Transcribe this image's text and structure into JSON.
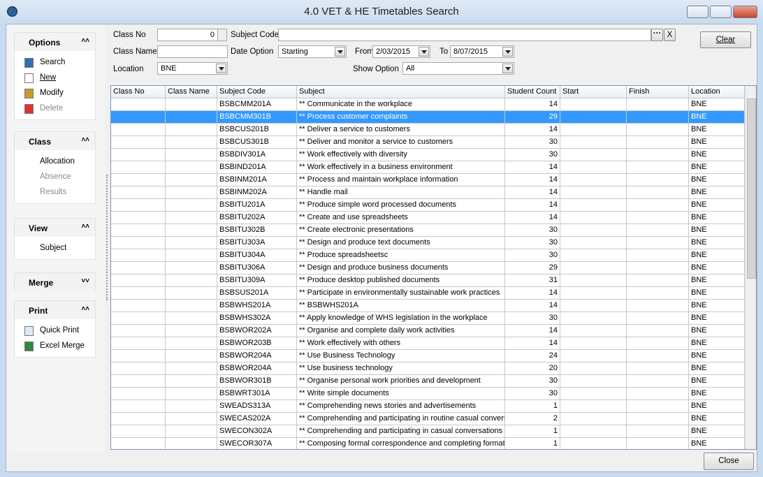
{
  "window": {
    "title": "4.0 VET & HE Timetables Search"
  },
  "sidebar": {
    "sections": [
      {
        "title": "Options",
        "items": [
          "Search",
          "New",
          "Modify",
          "Delete"
        ]
      },
      {
        "title": "Class",
        "items": [
          "Allocation",
          "Absence",
          "Results"
        ]
      },
      {
        "title": "View",
        "items": [
          "Subject"
        ]
      },
      {
        "title": "Merge",
        "items": []
      },
      {
        "title": "Print",
        "items": [
          "Quick Print",
          "Excel Merge"
        ]
      }
    ]
  },
  "filters": {
    "class_no_label": "Class No",
    "class_no": 0,
    "subject_code_label": "Subject Code",
    "subject_code_clear": "X",
    "class_name_label": "Class Name",
    "date_option_label": "Date Option",
    "date_option": "Starting",
    "from_label": "From",
    "from": "2/03/2015",
    "to_label": "To",
    "to": "8/07/2015",
    "location_label": "Location",
    "location": "BNE",
    "show_option_label": "Show Option",
    "show_option": "All"
  },
  "buttons": {
    "clear": "Clear",
    "close": "Close"
  },
  "table": {
    "columns": [
      "Class No",
      "Class Name",
      "Subject Code",
      "Subject",
      "Student Count",
      "Start",
      "Finish",
      "Location"
    ],
    "rows": [
      {
        "subject_code": "BSBCMM201A",
        "subject": "** Communicate in the workplace",
        "student_count": 14,
        "location": "BNE"
      },
      {
        "subject_code": "BSBCMM301B",
        "subject": "** Process customer complaints",
        "student_count": 29,
        "location": "BNE"
      },
      {
        "subject_code": "BSBCUS201B",
        "subject": "** Deliver a service to customers",
        "student_count": 14,
        "location": "BNE"
      },
      {
        "subject_code": "BSBCUS301B",
        "subject": "** Deliver and monitor a service to customers",
        "student_count": 30,
        "location": "BNE"
      },
      {
        "subject_code": "BSBDIV301A",
        "subject": "** Work effectively with diversity",
        "student_count": 30,
        "location": "BNE"
      },
      {
        "subject_code": "BSBIND201A",
        "subject": "** Work effectively in a business environment",
        "student_count": 14,
        "location": "BNE"
      },
      {
        "subject_code": "BSBINM201A",
        "subject": "** Process and maintain workplace information",
        "student_count": 14,
        "location": "BNE"
      },
      {
        "subject_code": "BSBINM202A",
        "subject": "** Handle mail",
        "student_count": 14,
        "location": "BNE"
      },
      {
        "subject_code": "BSBITU201A",
        "subject": "** Produce simple word processed documents",
        "student_count": 14,
        "location": "BNE"
      },
      {
        "subject_code": "BSBITU202A",
        "subject": "** Create and use spreadsheets",
        "student_count": 14,
        "location": "BNE"
      },
      {
        "subject_code": "BSBITU302B",
        "subject": "** Create electronic presentations",
        "student_count": 30,
        "location": "BNE"
      },
      {
        "subject_code": "BSBITU303A",
        "subject": "** Design and produce text documents",
        "student_count": 30,
        "location": "BNE"
      },
      {
        "subject_code": "BSBITU304A",
        "subject": "** Produce spreadsheetsc",
        "student_count": 30,
        "location": "BNE"
      },
      {
        "subject_code": "BSBITU306A",
        "subject": "** Design and produce business documents",
        "student_count": 29,
        "location": "BNE"
      },
      {
        "subject_code": "BSBITU309A",
        "subject": "** Produce desktop published documents",
        "student_count": 31,
        "location": "BNE"
      },
      {
        "subject_code": "BSBSUS201A",
        "subject": "** Participate in environmentally sustainable work practices",
        "student_count": 14,
        "location": "BNE"
      },
      {
        "subject_code": "BSBWHS201A",
        "subject": "** BSBWHS201A",
        "student_count": 14,
        "location": "BNE"
      },
      {
        "subject_code": "BSBWHS302A",
        "subject": "** Apply knowledge of WHS legislation in the workplace",
        "student_count": 30,
        "location": "BNE"
      },
      {
        "subject_code": "BSBWOR202A",
        "subject": "** Organise and complete daily work activities",
        "student_count": 14,
        "location": "BNE"
      },
      {
        "subject_code": "BSBWOR203B",
        "subject": "** Work effectively with others",
        "student_count": 14,
        "location": "BNE"
      },
      {
        "subject_code": "BSBWOR204A",
        "subject": "** Use Business Technology",
        "student_count": 24,
        "location": "BNE"
      },
      {
        "subject_code": "BSBWOR204A",
        "subject": "** Use business technology",
        "student_count": 20,
        "location": "BNE"
      },
      {
        "subject_code": "BSBWOR301B",
        "subject": "** Organise personal work priorities and development",
        "student_count": 30,
        "location": "BNE"
      },
      {
        "subject_code": "BSBWRT301A",
        "subject": "** Write simple documents",
        "student_count": 30,
        "location": "BNE"
      },
      {
        "subject_code": "SWEADS313A",
        "subject": "** Comprehending news stories and advertisements",
        "student_count": 1,
        "location": "BNE"
      },
      {
        "subject_code": "SWECAS202A",
        "subject": "** Comprehending and participating in routine casual convers",
        "student_count": 2,
        "location": "BNE"
      },
      {
        "subject_code": "SWECON302A",
        "subject": "** Comprehending and participating in casual conversations",
        "student_count": 1,
        "location": "BNE"
      },
      {
        "subject_code": "SWECOR307A",
        "subject": "** Composing formal correspondence and completing formatt",
        "student_count": 1,
        "location": "BNE"
      }
    ]
  }
}
